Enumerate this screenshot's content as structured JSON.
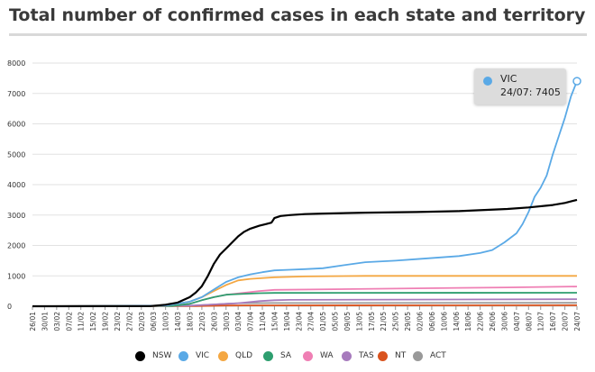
{
  "title": "Total number of confirmed cases in each state and territory",
  "tooltip": {
    "series": "VIC",
    "text": "24/07: 7405"
  },
  "chart_data": {
    "type": "line",
    "title": "Total number of confirmed cases in each state and territory",
    "xlabel": "",
    "ylabel": "",
    "ylim": [
      0,
      8000
    ],
    "yticks": [
      0,
      1000,
      2000,
      3000,
      4000,
      5000,
      6000,
      7000,
      8000
    ],
    "xtick_labels": [
      "26/01",
      "30/01",
      "03/02",
      "07/02",
      "11/02",
      "15/02",
      "19/02",
      "23/02",
      "27/02",
      "02/03",
      "06/03",
      "10/03",
      "14/03",
      "18/03",
      "22/03",
      "26/03",
      "30/03",
      "03/04",
      "07/04",
      "11/04",
      "15/04",
      "19/04",
      "23/04",
      "27/04",
      "01/05",
      "05/05",
      "09/05",
      "13/05",
      "17/05",
      "21/05",
      "25/05",
      "29/05",
      "02/06",
      "06/06",
      "10/06",
      "14/06",
      "18/06",
      "22/06",
      "26/06",
      "30/06",
      "04/07",
      "08/07",
      "12/07",
      "16/07",
      "20/07",
      "24/07"
    ],
    "x_start": "26/01",
    "x_end": "24/07",
    "grid": "horizontal",
    "legend_position": "bottom",
    "series": [
      {
        "name": "NSW",
        "color": "#000000",
        "points": [
          [
            "26/01",
            0
          ],
          [
            "05/03",
            5
          ],
          [
            "10/03",
            50
          ],
          [
            "14/03",
            120
          ],
          [
            "18/03",
            300
          ],
          [
            "20/03",
            450
          ],
          [
            "22/03",
            660
          ],
          [
            "24/03",
            1000
          ],
          [
            "26/03",
            1400
          ],
          [
            "28/03",
            1700
          ],
          [
            "30/03",
            1900
          ],
          [
            "01/04",
            2100
          ],
          [
            "03/04",
            2300
          ],
          [
            "05/04",
            2450
          ],
          [
            "07/04",
            2550
          ],
          [
            "10/04",
            2650
          ],
          [
            "12/04",
            2700
          ],
          [
            "14/04",
            2750
          ],
          [
            "15/04",
            2900
          ],
          [
            "17/04",
            2970
          ],
          [
            "20/04",
            3000
          ],
          [
            "25/04",
            3030
          ],
          [
            "01/05",
            3050
          ],
          [
            "15/05",
            3080
          ],
          [
            "01/06",
            3100
          ],
          [
            "15/06",
            3130
          ],
          [
            "01/07",
            3200
          ],
          [
            "08/07",
            3250
          ],
          [
            "16/07",
            3330
          ],
          [
            "20/07",
            3400
          ],
          [
            "24/07",
            3500
          ]
        ]
      },
      {
        "name": "VIC",
        "color": "#5aa9e6",
        "points": [
          [
            "26/01",
            0
          ],
          [
            "10/03",
            20
          ],
          [
            "18/03",
            150
          ],
          [
            "22/03",
            300
          ],
          [
            "26/03",
            550
          ],
          [
            "30/03",
            800
          ],
          [
            "03/04",
            950
          ],
          [
            "07/04",
            1050
          ],
          [
            "11/04",
            1120
          ],
          [
            "15/04",
            1180
          ],
          [
            "20/04",
            1200
          ],
          [
            "25/04",
            1220
          ],
          [
            "01/05",
            1250
          ],
          [
            "08/05",
            1350
          ],
          [
            "15/05",
            1450
          ],
          [
            "25/05",
            1500
          ],
          [
            "01/06",
            1550
          ],
          [
            "15/06",
            1650
          ],
          [
            "22/06",
            1750
          ],
          [
            "26/06",
            1850
          ],
          [
            "30/06",
            2100
          ],
          [
            "04/07",
            2400
          ],
          [
            "06/07",
            2700
          ],
          [
            "08/07",
            3100
          ],
          [
            "10/07",
            3600
          ],
          [
            "12/07",
            3900
          ],
          [
            "14/07",
            4300
          ],
          [
            "16/07",
            5000
          ],
          [
            "18/07",
            5600
          ],
          [
            "20/07",
            6200
          ],
          [
            "22/07",
            6900
          ],
          [
            "24/07",
            7405
          ]
        ]
      },
      {
        "name": "QLD",
        "color": "#f4a742",
        "points": [
          [
            "26/01",
            0
          ],
          [
            "10/03",
            20
          ],
          [
            "18/03",
            150
          ],
          [
            "22/03",
            300
          ],
          [
            "26/03",
            500
          ],
          [
            "30/03",
            700
          ],
          [
            "03/04",
            850
          ],
          [
            "07/04",
            900
          ],
          [
            "15/04",
            950
          ],
          [
            "25/04",
            980
          ],
          [
            "15/05",
            1000
          ],
          [
            "24/07",
            1000
          ]
        ]
      },
      {
        "name": "SA",
        "color": "#2e9e6f",
        "points": [
          [
            "26/01",
            0
          ],
          [
            "12/03",
            10
          ],
          [
            "18/03",
            80
          ],
          [
            "22/03",
            200
          ],
          [
            "26/03",
            300
          ],
          [
            "30/03",
            380
          ],
          [
            "03/04",
            400
          ],
          [
            "10/04",
            430
          ],
          [
            "15/04",
            438
          ],
          [
            "24/07",
            445
          ]
        ]
      },
      {
        "name": "WA",
        "color": "#ef7fb4",
        "points": [
          [
            "26/01",
            0
          ],
          [
            "12/03",
            10
          ],
          [
            "18/03",
            80
          ],
          [
            "22/03",
            200
          ],
          [
            "26/03",
            300
          ],
          [
            "30/03",
            380
          ],
          [
            "03/04",
            420
          ],
          [
            "10/04",
            500
          ],
          [
            "15/04",
            540
          ],
          [
            "01/06",
            590
          ],
          [
            "01/07",
            620
          ],
          [
            "24/07",
            650
          ]
        ]
      },
      {
        "name": "TAS",
        "color": "#a77bbd",
        "points": [
          [
            "26/01",
            0
          ],
          [
            "18/03",
            20
          ],
          [
            "26/03",
            60
          ],
          [
            "03/04",
            100
          ],
          [
            "10/04",
            170
          ],
          [
            "15/04",
            200
          ],
          [
            "20/04",
            210
          ],
          [
            "24/07",
            230
          ]
        ]
      },
      {
        "name": "NT",
        "color": "#d9531e",
        "points": [
          [
            "26/01",
            0
          ],
          [
            "20/03",
            5
          ],
          [
            "30/03",
            25
          ],
          [
            "05/04",
            28
          ],
          [
            "24/07",
            32
          ]
        ]
      },
      {
        "name": "ACT",
        "color": "#999999",
        "points": [
          [
            "26/01",
            0
          ],
          [
            "18/03",
            10
          ],
          [
            "26/03",
            60
          ],
          [
            "03/04",
            100
          ],
          [
            "15/04",
            106
          ],
          [
            "24/07",
            113
          ]
        ]
      }
    ]
  }
}
